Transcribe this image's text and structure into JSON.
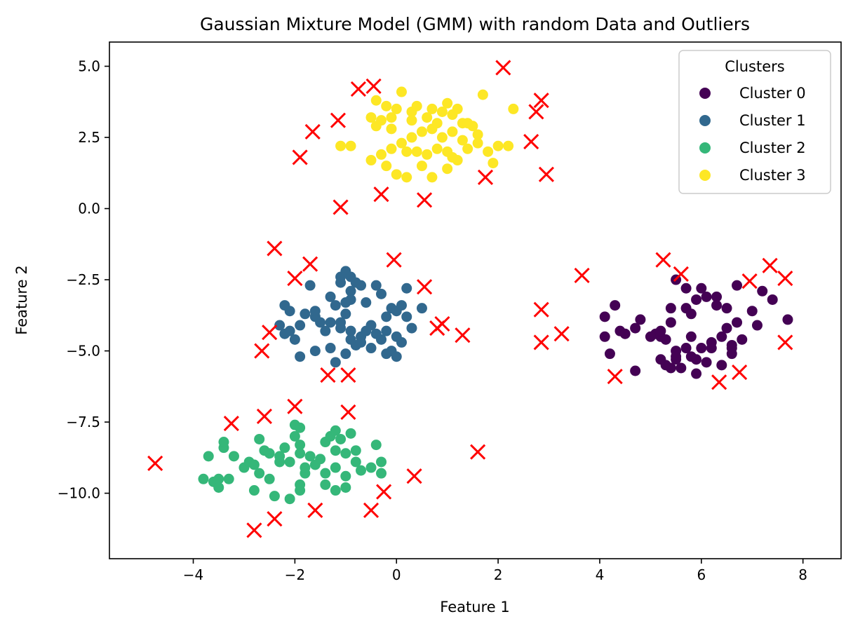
{
  "chart_data": {
    "type": "scatter",
    "title": "Gaussian Mixture Model (GMM) with random Data and Outliers",
    "xlabel": "Feature 1",
    "ylabel": "Feature 2",
    "xlim": [
      -5.65,
      8.75
    ],
    "ylim": [
      -12.3,
      5.85
    ],
    "xticks": [
      -4,
      -2,
      0,
      2,
      4,
      6,
      8
    ],
    "xtick_labels": [
      "−4",
      "−2",
      "0",
      "2",
      "4",
      "6",
      "8"
    ],
    "yticks": [
      5.0,
      2.5,
      0.0,
      -2.5,
      -5.0,
      -7.5,
      -10.0
    ],
    "ytick_labels": [
      "5.0",
      "2.5",
      "0.0",
      "−2.5",
      "−5.0",
      "−7.5",
      "−10.0"
    ],
    "grid": false,
    "legend": {
      "title": "Clusters",
      "placement": "top-right",
      "entries": [
        "Cluster 0",
        "Cluster 1",
        "Cluster 2",
        "Cluster 3"
      ]
    },
    "series": [
      {
        "name": "Cluster 0",
        "color": "#440154",
        "points": [
          [
            6.0,
            -2.8
          ],
          [
            6.3,
            -3.4
          ],
          [
            6.7,
            -2.7
          ],
          [
            7.2,
            -2.9
          ],
          [
            7.4,
            -3.2
          ],
          [
            7.1,
            -4.1
          ],
          [
            7.7,
            -3.9
          ],
          [
            6.7,
            -4.0
          ],
          [
            6.8,
            -4.6
          ],
          [
            7.0,
            -3.6
          ],
          [
            6.5,
            -3.5
          ],
          [
            5.9,
            -3.2
          ],
          [
            5.7,
            -2.8
          ],
          [
            5.5,
            -2.5
          ],
          [
            5.4,
            -3.5
          ],
          [
            5.8,
            -3.7
          ],
          [
            6.1,
            -3.1
          ],
          [
            6.2,
            -4.7
          ],
          [
            6.4,
            -4.5
          ],
          [
            6.6,
            -4.8
          ],
          [
            6.6,
            -5.1
          ],
          [
            6.4,
            -5.5
          ],
          [
            6.1,
            -5.4
          ],
          [
            6.0,
            -4.9
          ],
          [
            5.8,
            -5.2
          ],
          [
            5.7,
            -4.9
          ],
          [
            5.5,
            -5.0
          ],
          [
            5.5,
            -5.3
          ],
          [
            5.3,
            -5.5
          ],
          [
            5.3,
            -4.6
          ],
          [
            5.2,
            -4.5
          ],
          [
            5.1,
            -4.4
          ],
          [
            5.0,
            -4.5
          ],
          [
            5.4,
            -4.0
          ],
          [
            5.8,
            -4.5
          ],
          [
            5.9,
            -5.8
          ],
          [
            5.6,
            -5.6
          ],
          [
            5.4,
            -5.6
          ],
          [
            5.2,
            -5.3
          ],
          [
            4.8,
            -3.9
          ],
          [
            4.7,
            -4.2
          ],
          [
            4.4,
            -4.3
          ],
          [
            4.3,
            -3.4
          ],
          [
            4.1,
            -3.8
          ],
          [
            4.1,
            -4.5
          ],
          [
            4.2,
            -5.1
          ],
          [
            4.5,
            -4.4
          ],
          [
            4.7,
            -5.7
          ],
          [
            5.5,
            -5.2
          ],
          [
            5.9,
            -5.3
          ],
          [
            6.5,
            -4.2
          ],
          [
            6.2,
            -4.9
          ],
          [
            6.6,
            -4.9
          ],
          [
            6.3,
            -3.1
          ],
          [
            5.2,
            -4.3
          ],
          [
            5.7,
            -3.5
          ]
        ]
      },
      {
        "name": "Cluster 1",
        "color": "#31688e",
        "points": [
          [
            -1.1,
            -2.4
          ],
          [
            -1.0,
            -2.2
          ],
          [
            -1.1,
            -2.6
          ],
          [
            -0.8,
            -2.6
          ],
          [
            -0.9,
            -2.4
          ],
          [
            -0.9,
            -2.9
          ],
          [
            -0.7,
            -2.7
          ],
          [
            -0.4,
            -2.7
          ],
          [
            -0.6,
            -3.3
          ],
          [
            -0.9,
            -3.2
          ],
          [
            -1.3,
            -3.1
          ],
          [
            -1.2,
            -3.4
          ],
          [
            -1.0,
            -3.7
          ],
          [
            -1.1,
            -4.2
          ],
          [
            -1.3,
            -4.0
          ],
          [
            -1.4,
            -4.3
          ],
          [
            -1.5,
            -4.0
          ],
          [
            -1.6,
            -3.8
          ],
          [
            -1.8,
            -3.7
          ],
          [
            -1.9,
            -4.1
          ],
          [
            -2.1,
            -3.6
          ],
          [
            -2.2,
            -3.4
          ],
          [
            -2.2,
            -4.4
          ],
          [
            -2.3,
            -4.1
          ],
          [
            -2.0,
            -4.6
          ],
          [
            -1.9,
            -5.2
          ],
          [
            -1.6,
            -5.0
          ],
          [
            -1.3,
            -4.9
          ],
          [
            -1.2,
            -5.4
          ],
          [
            -1.0,
            -5.1
          ],
          [
            -0.8,
            -4.8
          ],
          [
            -0.9,
            -4.6
          ],
          [
            -0.7,
            -4.5
          ],
          [
            -0.6,
            -4.3
          ],
          [
            -0.5,
            -4.1
          ],
          [
            -0.4,
            -4.4
          ],
          [
            -0.3,
            -4.6
          ],
          [
            -0.2,
            -4.3
          ],
          [
            -0.2,
            -3.8
          ],
          [
            -0.1,
            -3.5
          ],
          [
            0.0,
            -3.6
          ],
          [
            0.1,
            -3.4
          ],
          [
            0.2,
            -3.8
          ],
          [
            0.3,
            -4.2
          ],
          [
            0.1,
            -4.7
          ],
          [
            0.0,
            -4.5
          ],
          [
            -0.1,
            -5.0
          ],
          [
            -0.2,
            -5.1
          ],
          [
            0.0,
            -5.2
          ],
          [
            -0.5,
            -4.9
          ],
          [
            -0.7,
            -4.7
          ],
          [
            -0.9,
            -4.3
          ],
          [
            -1.1,
            -4.0
          ],
          [
            -1.7,
            -2.7
          ],
          [
            -2.1,
            -4.3
          ],
          [
            -1.6,
            -3.6
          ],
          [
            -1.0,
            -3.3
          ],
          [
            0.2,
            -2.8
          ],
          [
            0.5,
            -3.5
          ],
          [
            -0.3,
            -3.0
          ]
        ]
      },
      {
        "name": "Cluster 2",
        "color": "#35b779",
        "points": [
          [
            -3.8,
            -9.5
          ],
          [
            -3.6,
            -9.6
          ],
          [
            -3.5,
            -9.8
          ],
          [
            -3.3,
            -9.5
          ],
          [
            -3.2,
            -8.7
          ],
          [
            -3.4,
            -8.4
          ],
          [
            -3.4,
            -8.2
          ],
          [
            -3.7,
            -8.7
          ],
          [
            -3.0,
            -9.1
          ],
          [
            -2.9,
            -8.9
          ],
          [
            -2.8,
            -9.0
          ],
          [
            -2.7,
            -9.3
          ],
          [
            -2.5,
            -9.5
          ],
          [
            -2.4,
            -10.1
          ],
          [
            -2.1,
            -10.2
          ],
          [
            -1.9,
            -9.9
          ],
          [
            -1.9,
            -9.7
          ],
          [
            -1.8,
            -9.3
          ],
          [
            -1.6,
            -9.0
          ],
          [
            -1.7,
            -8.7
          ],
          [
            -1.9,
            -8.3
          ],
          [
            -2.0,
            -8.0
          ],
          [
            -1.9,
            -8.6
          ],
          [
            -2.2,
            -8.4
          ],
          [
            -2.3,
            -8.9
          ],
          [
            -2.5,
            -8.6
          ],
          [
            -2.7,
            -8.1
          ],
          [
            -2.6,
            -8.5
          ],
          [
            -1.4,
            -8.2
          ],
          [
            -1.3,
            -8.0
          ],
          [
            -1.2,
            -7.8
          ],
          [
            -1.1,
            -8.1
          ],
          [
            -1.0,
            -8.6
          ],
          [
            -0.9,
            -7.9
          ],
          [
            -0.8,
            -8.5
          ],
          [
            -1.2,
            -9.1
          ],
          [
            -1.4,
            -9.3
          ],
          [
            -1.0,
            -9.4
          ],
          [
            -0.7,
            -9.2
          ],
          [
            -0.5,
            -9.1
          ],
          [
            -0.3,
            -9.3
          ],
          [
            -0.3,
            -8.9
          ],
          [
            -0.4,
            -8.3
          ],
          [
            -1.4,
            -9.7
          ],
          [
            -1.2,
            -9.9
          ],
          [
            -1.0,
            -9.8
          ],
          [
            -1.8,
            -9.1
          ],
          [
            -2.0,
            -7.6
          ],
          [
            -1.9,
            -7.7
          ],
          [
            -2.8,
            -9.9
          ],
          [
            -3.5,
            -9.5
          ],
          [
            -2.3,
            -8.7
          ],
          [
            -1.5,
            -8.8
          ],
          [
            -1.2,
            -8.5
          ],
          [
            -0.8,
            -8.9
          ],
          [
            -2.1,
            -8.9
          ]
        ]
      },
      {
        "name": "Cluster 3",
        "color": "#fde725",
        "points": [
          [
            0.1,
            4.1
          ],
          [
            -0.4,
            3.8
          ],
          [
            -0.2,
            3.6
          ],
          [
            0.0,
            3.5
          ],
          [
            0.3,
            3.4
          ],
          [
            0.4,
            3.6
          ],
          [
            0.7,
            3.5
          ],
          [
            0.9,
            3.4
          ],
          [
            1.1,
            3.3
          ],
          [
            1.3,
            3.0
          ],
          [
            1.5,
            2.9
          ],
          [
            1.6,
            2.6
          ],
          [
            1.3,
            2.4
          ],
          [
            1.1,
            2.7
          ],
          [
            0.9,
            2.5
          ],
          [
            0.7,
            2.8
          ],
          [
            0.5,
            2.7
          ],
          [
            0.3,
            2.5
          ],
          [
            0.1,
            2.3
          ],
          [
            -0.1,
            2.1
          ],
          [
            -0.3,
            1.9
          ],
          [
            -0.5,
            1.7
          ],
          [
            -0.2,
            1.5
          ],
          [
            0.0,
            1.2
          ],
          [
            0.2,
            1.1
          ],
          [
            0.5,
            1.5
          ],
          [
            0.7,
            1.1
          ],
          [
            1.0,
            1.4
          ],
          [
            1.2,
            1.7
          ],
          [
            1.4,
            2.1
          ],
          [
            1.6,
            2.3
          ],
          [
            1.8,
            2.0
          ],
          [
            2.0,
            2.2
          ],
          [
            2.2,
            2.2
          ],
          [
            2.3,
            3.5
          ],
          [
            1.7,
            4.0
          ],
          [
            1.9,
            1.6
          ],
          [
            -0.3,
            3.1
          ],
          [
            -0.1,
            2.8
          ],
          [
            -0.5,
            3.2
          ],
          [
            -0.9,
            2.2
          ],
          [
            -1.1,
            2.2
          ],
          [
            0.6,
            3.2
          ],
          [
            0.8,
            3.0
          ],
          [
            1.0,
            3.7
          ],
          [
            1.2,
            3.5
          ],
          [
            1.4,
            3.0
          ],
          [
            0.4,
            2.0
          ],
          [
            0.6,
            1.9
          ],
          [
            0.8,
            2.1
          ],
          [
            1.0,
            2.0
          ],
          [
            1.1,
            1.8
          ],
          [
            -0.4,
            2.9
          ],
          [
            0.2,
            2.0
          ],
          [
            -0.1,
            3.2
          ],
          [
            0.3,
            3.1
          ]
        ]
      }
    ],
    "outliers": {
      "marker": "x",
      "color": "#ff0000",
      "points": [
        [
          -1.9,
          1.8
        ],
        [
          -1.65,
          2.7
        ],
        [
          -1.15,
          3.1
        ],
        [
          -0.75,
          4.2
        ],
        [
          -0.45,
          4.3
        ],
        [
          -1.1,
          0.05
        ],
        [
          -0.3,
          0.5
        ],
        [
          0.55,
          0.3
        ],
        [
          1.75,
          1.1
        ],
        [
          2.1,
          4.95
        ],
        [
          2.65,
          2.35
        ],
        [
          2.75,
          3.4
        ],
        [
          2.85,
          3.8
        ],
        [
          2.95,
          1.2
        ],
        [
          -2.4,
          -1.4
        ],
        [
          -1.7,
          -1.95
        ],
        [
          -2.0,
          -2.45
        ],
        [
          -0.05,
          -1.8
        ],
        [
          0.55,
          -2.75
        ],
        [
          0.8,
          -4.2
        ],
        [
          0.9,
          -4.05
        ],
        [
          1.3,
          -4.45
        ],
        [
          -1.35,
          -5.85
        ],
        [
          -0.95,
          -5.85
        ],
        [
          -2.65,
          -5.0
        ],
        [
          -2.5,
          -4.35
        ],
        [
          2.85,
          -3.55
        ],
        [
          2.85,
          -4.7
        ],
        [
          3.25,
          -4.4
        ],
        [
          3.65,
          -2.35
        ],
        [
          4.3,
          -5.9
        ],
        [
          5.25,
          -1.8
        ],
        [
          5.6,
          -2.3
        ],
        [
          6.35,
          -6.1
        ],
        [
          6.75,
          -5.75
        ],
        [
          6.95,
          -2.55
        ],
        [
          7.35,
          -2.0
        ],
        [
          7.65,
          -2.45
        ],
        [
          7.65,
          -4.7
        ],
        [
          -4.75,
          -8.95
        ],
        [
          -3.25,
          -7.55
        ],
        [
          -2.6,
          -7.3
        ],
        [
          -2.0,
          -6.95
        ],
        [
          -0.95,
          -7.15
        ],
        [
          1.6,
          -8.55
        ],
        [
          0.35,
          -9.4
        ],
        [
          -0.25,
          -9.95
        ],
        [
          -0.5,
          -10.6
        ],
        [
          -1.6,
          -10.6
        ],
        [
          -2.4,
          -10.9
        ],
        [
          -2.8,
          -11.3
        ]
      ]
    }
  }
}
